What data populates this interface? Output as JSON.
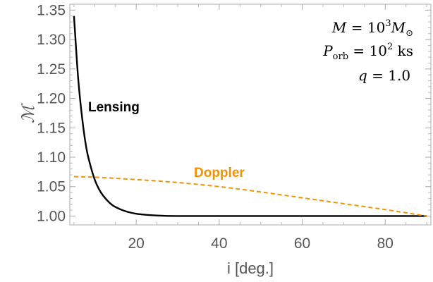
{
  "chart_data": {
    "type": "line",
    "xlabel": "i [deg.]",
    "ylabel": "ℳ",
    "xlim": [
      4,
      91
    ],
    "ylim": [
      0.985,
      1.36
    ],
    "xticks": [
      20,
      40,
      60,
      80
    ],
    "xtick_labels": [
      "20",
      "40",
      "60",
      "80"
    ],
    "yticks": [
      1.0,
      1.05,
      1.1,
      1.15,
      1.2,
      1.25,
      1.3,
      1.35
    ],
    "ytick_labels": [
      "1.00",
      "1.05",
      "1.10",
      "1.15",
      "1.20",
      "1.25",
      "1.30",
      "1.35"
    ],
    "grid": false,
    "series": [
      {
        "name": "Lensing",
        "color": "#000000",
        "style": "solid",
        "x": [
          5,
          6,
          7,
          8,
          9,
          10,
          11,
          12,
          14,
          16,
          18,
          20,
          25,
          30,
          40,
          50,
          60,
          70,
          80,
          90
        ],
        "y": [
          1.34,
          1.235,
          1.165,
          1.115,
          1.085,
          1.062,
          1.046,
          1.035,
          1.02,
          1.012,
          1.007,
          1.004,
          1.001,
          1.0,
          1.0,
          1.0,
          1.0,
          1.0,
          1.0,
          1.0
        ]
      },
      {
        "name": "Doppler",
        "color": "#f39200",
        "style": "dashed",
        "x": [
          5,
          10,
          20,
          30,
          40,
          50,
          60,
          70,
          80,
          90
        ],
        "y": [
          1.067,
          1.066,
          1.062,
          1.057,
          1.05,
          1.041,
          1.031,
          1.021,
          1.011,
          1.0
        ]
      }
    ],
    "annotations": {
      "mass": {
        "lhs": "M",
        "eq": " = 10",
        "exp": "3",
        "rhs": "M",
        "sub": "⊙"
      },
      "period": {
        "lhs": "P",
        "sub": "orb",
        "eq": " = 10",
        "exp": "2",
        "unit": " ks"
      },
      "ratio": {
        "lhs": "q",
        "eq": " = 1.0"
      }
    }
  }
}
